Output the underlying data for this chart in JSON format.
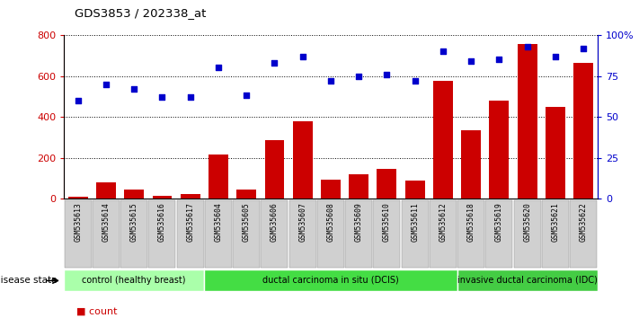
{
  "title": "GDS3853 / 202338_at",
  "samples": [
    "GSM535613",
    "GSM535614",
    "GSM535615",
    "GSM535616",
    "GSM535617",
    "GSM535604",
    "GSM535605",
    "GSM535606",
    "GSM535607",
    "GSM535608",
    "GSM535609",
    "GSM535610",
    "GSM535611",
    "GSM535612",
    "GSM535618",
    "GSM535619",
    "GSM535620",
    "GSM535621",
    "GSM535622"
  ],
  "counts": [
    10,
    80,
    45,
    15,
    25,
    215,
    45,
    285,
    380,
    95,
    120,
    148,
    90,
    575,
    335,
    480,
    755,
    450,
    665
  ],
  "percentiles": [
    60,
    70,
    67,
    62,
    62,
    80,
    63,
    83,
    87,
    72,
    75,
    76,
    72,
    90,
    84,
    85,
    93,
    87,
    92
  ],
  "groups": [
    {
      "label": "control (healthy breast)",
      "start": 0,
      "end": 5,
      "color": "#aaffaa"
    },
    {
      "label": "ductal carcinoma in situ (DCIS)",
      "start": 5,
      "end": 14,
      "color": "#44dd44"
    },
    {
      "label": "invasive ductal carcinoma (IDC)",
      "start": 14,
      "end": 19,
      "color": "#44cc44"
    }
  ],
  "bar_color": "#CC0000",
  "dot_color": "#0000CC",
  "left_ylim": [
    0,
    800
  ],
  "right_ylim": [
    0,
    100
  ],
  "left_yticks": [
    0,
    200,
    400,
    600,
    800
  ],
  "right_yticks": [
    0,
    25,
    50,
    75,
    100
  ],
  "right_yticklabels": [
    "0",
    "25",
    "50",
    "75",
    "100%"
  ],
  "xticklabel_bg": "#C8C8C8",
  "plot_bg_color": "#FFFFFF",
  "disease_state_label": "disease state"
}
